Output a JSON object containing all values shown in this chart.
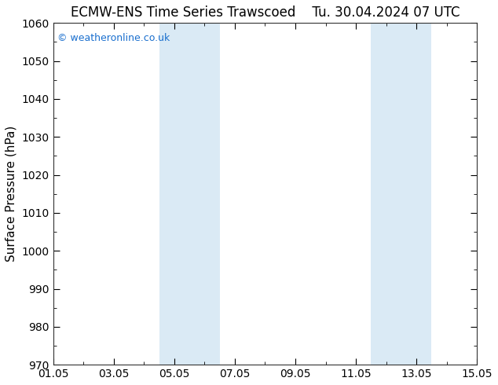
{
  "title_left": "ECMW-ENS Time Series Trawscoed",
  "title_right": "Tu. 30.04.2024 07 UTC",
  "ylabel": "Surface Pressure (hPa)",
  "ylim": [
    970,
    1060
  ],
  "ytick_major": 10,
  "ytick_minor": 5,
  "xlim": [
    0,
    14
  ],
  "xtick_labels": [
    "01.05",
    "03.05",
    "05.05",
    "07.05",
    "09.05",
    "11.05",
    "13.05",
    "15.05"
  ],
  "xtick_positions_days": [
    0,
    2,
    4,
    6,
    8,
    10,
    12,
    14
  ],
  "shaded_bands": [
    {
      "xstart_day": 3.5,
      "xend_day": 5.5
    },
    {
      "xstart_day": 10.5,
      "xend_day": 12.5
    }
  ],
  "shade_color": "#daeaf5",
  "background_color": "#ffffff",
  "plot_bg_color": "#ffffff",
  "watermark": "© weatheronline.co.uk",
  "watermark_color": "#1a6fce",
  "title_fontsize": 12,
  "ylabel_fontsize": 11,
  "tick_label_fontsize": 10,
  "watermark_fontsize": 9
}
